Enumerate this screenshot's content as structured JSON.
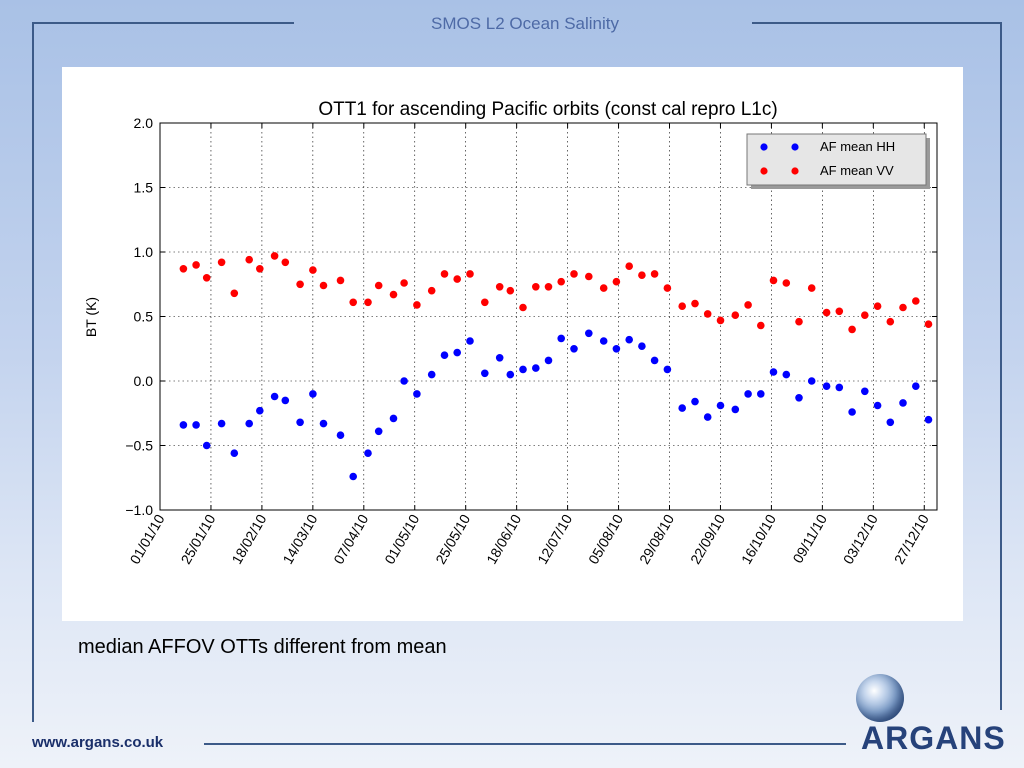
{
  "slide": {
    "title": "SMOS L2 Ocean Salinity",
    "caption": "median AFFOV OTTs different from mean",
    "footer_url": "www.argans.co.uk",
    "logo_text": "ARGANS"
  },
  "colors": {
    "frame": "#3c5a88",
    "title": "#4e6aa6",
    "hh": "#0000ff",
    "vv": "#ff0000"
  },
  "chart_data": {
    "type": "scatter",
    "title": "OTT1 for ascending Pacific orbits (const cal repro L1c)",
    "xlabel": "",
    "ylabel": "BT (K)",
    "x_tick_labels": [
      "01/01/10",
      "25/01/10",
      "18/02/10",
      "14/03/10",
      "07/04/10",
      "01/05/10",
      "25/05/10",
      "18/06/10",
      "12/07/10",
      "05/08/10",
      "29/08/10",
      "22/09/10",
      "16/10/10",
      "09/11/10",
      "03/12/10",
      "27/12/10"
    ],
    "x_ticks": [
      "2010-01-01",
      "2010-01-25",
      "2010-02-18",
      "2010-03-14",
      "2010-04-07",
      "2010-05-01",
      "2010-05-25",
      "2010-06-18",
      "2010-07-12",
      "2010-08-05",
      "2010-08-29",
      "2010-09-22",
      "2010-10-16",
      "2010-11-09",
      "2010-12-03",
      "2010-12-27"
    ],
    "xlim": [
      "2010-01-01",
      "2011-01-02"
    ],
    "ylim": [
      -1.0,
      2.0
    ],
    "y_ticks": [
      -1.0,
      -0.5,
      0.0,
      0.5,
      1.0,
      1.5,
      2.0
    ],
    "y_tick_labels": [
      "−1.0",
      "−0.5",
      "0.0",
      "0.5",
      "1.0",
      "1.5",
      "2.0"
    ],
    "grid": true,
    "legend_position": "top-right",
    "series": [
      {
        "name": "AF mean HH",
        "color": "#0000ff",
        "points": [
          [
            "2010-01-12",
            -0.34
          ],
          [
            "2010-01-18",
            -0.34
          ],
          [
            "2010-01-23",
            -0.5
          ],
          [
            "2010-01-30",
            -0.33
          ],
          [
            "2010-02-05",
            -0.56
          ],
          [
            "2010-02-12",
            -0.33
          ],
          [
            "2010-02-17",
            -0.23
          ],
          [
            "2010-02-24",
            -0.12
          ],
          [
            "2010-03-01",
            -0.15
          ],
          [
            "2010-03-08",
            -0.32
          ],
          [
            "2010-03-14",
            -0.1
          ],
          [
            "2010-03-19",
            -0.33
          ],
          [
            "2010-03-27",
            -0.42
          ],
          [
            "2010-04-02",
            -0.74
          ],
          [
            "2010-04-09",
            -0.56
          ],
          [
            "2010-04-14",
            -0.39
          ],
          [
            "2010-04-21",
            -0.29
          ],
          [
            "2010-04-26",
            0.0
          ],
          [
            "2010-05-02",
            -0.1
          ],
          [
            "2010-05-09",
            0.05
          ],
          [
            "2010-05-15",
            0.2
          ],
          [
            "2010-05-21",
            0.22
          ],
          [
            "2010-05-27",
            0.31
          ],
          [
            "2010-06-03",
            0.06
          ],
          [
            "2010-06-10",
            0.18
          ],
          [
            "2010-06-15",
            0.05
          ],
          [
            "2010-06-21",
            0.09
          ],
          [
            "2010-06-27",
            0.1
          ],
          [
            "2010-07-03",
            0.16
          ],
          [
            "2010-07-09",
            0.33
          ],
          [
            "2010-07-15",
            0.25
          ],
          [
            "2010-07-22",
            0.37
          ],
          [
            "2010-07-29",
            0.31
          ],
          [
            "2010-08-04",
            0.25
          ],
          [
            "2010-08-10",
            0.32
          ],
          [
            "2010-08-16",
            0.27
          ],
          [
            "2010-08-22",
            0.16
          ],
          [
            "2010-08-28",
            0.09
          ],
          [
            "2010-09-04",
            -0.21
          ],
          [
            "2010-09-10",
            -0.16
          ],
          [
            "2010-09-16",
            -0.28
          ],
          [
            "2010-09-22",
            -0.19
          ],
          [
            "2010-09-29",
            -0.22
          ],
          [
            "2010-10-05",
            -0.1
          ],
          [
            "2010-10-11",
            -0.1
          ],
          [
            "2010-10-17",
            0.07
          ],
          [
            "2010-10-23",
            0.05
          ],
          [
            "2010-10-29",
            -0.13
          ],
          [
            "2010-11-04",
            0.0
          ],
          [
            "2010-11-11",
            -0.04
          ],
          [
            "2010-11-17",
            -0.05
          ],
          [
            "2010-11-23",
            -0.24
          ],
          [
            "2010-11-29",
            -0.08
          ],
          [
            "2010-12-05",
            -0.19
          ],
          [
            "2010-12-11",
            -0.32
          ],
          [
            "2010-12-17",
            -0.17
          ],
          [
            "2010-12-23",
            -0.04
          ],
          [
            "2010-12-29",
            -0.3
          ]
        ]
      },
      {
        "name": "AF mean VV",
        "color": "#ff0000",
        "points": [
          [
            "2010-01-12",
            0.87
          ],
          [
            "2010-01-18",
            0.9
          ],
          [
            "2010-01-23",
            0.8
          ],
          [
            "2010-01-30",
            0.92
          ],
          [
            "2010-02-05",
            0.68
          ],
          [
            "2010-02-12",
            0.94
          ],
          [
            "2010-02-17",
            0.87
          ],
          [
            "2010-02-24",
            0.97
          ],
          [
            "2010-03-01",
            0.92
          ],
          [
            "2010-03-08",
            0.75
          ],
          [
            "2010-03-14",
            0.86
          ],
          [
            "2010-03-19",
            0.74
          ],
          [
            "2010-03-27",
            0.78
          ],
          [
            "2010-04-02",
            0.61
          ],
          [
            "2010-04-09",
            0.61
          ],
          [
            "2010-04-14",
            0.74
          ],
          [
            "2010-04-21",
            0.67
          ],
          [
            "2010-04-26",
            0.76
          ],
          [
            "2010-05-02",
            0.59
          ],
          [
            "2010-05-09",
            0.7
          ],
          [
            "2010-05-15",
            0.83
          ],
          [
            "2010-05-21",
            0.79
          ],
          [
            "2010-05-27",
            0.83
          ],
          [
            "2010-06-03",
            0.61
          ],
          [
            "2010-06-10",
            0.73
          ],
          [
            "2010-06-15",
            0.7
          ],
          [
            "2010-06-21",
            0.57
          ],
          [
            "2010-06-27",
            0.73
          ],
          [
            "2010-07-03",
            0.73
          ],
          [
            "2010-07-09",
            0.77
          ],
          [
            "2010-07-15",
            0.83
          ],
          [
            "2010-07-22",
            0.81
          ],
          [
            "2010-07-29",
            0.72
          ],
          [
            "2010-08-04",
            0.77
          ],
          [
            "2010-08-10",
            0.89
          ],
          [
            "2010-08-16",
            0.82
          ],
          [
            "2010-08-22",
            0.83
          ],
          [
            "2010-08-28",
            0.72
          ],
          [
            "2010-09-04",
            0.58
          ],
          [
            "2010-09-10",
            0.6
          ],
          [
            "2010-09-16",
            0.52
          ],
          [
            "2010-09-22",
            0.47
          ],
          [
            "2010-09-29",
            0.51
          ],
          [
            "2010-10-05",
            0.59
          ],
          [
            "2010-10-11",
            0.43
          ],
          [
            "2010-10-17",
            0.78
          ],
          [
            "2010-10-23",
            0.76
          ],
          [
            "2010-10-29",
            0.46
          ],
          [
            "2010-11-04",
            0.72
          ],
          [
            "2010-11-11",
            0.53
          ],
          [
            "2010-11-17",
            0.54
          ],
          [
            "2010-11-23",
            0.4
          ],
          [
            "2010-11-29",
            0.51
          ],
          [
            "2010-12-05",
            0.58
          ],
          [
            "2010-12-11",
            0.46
          ],
          [
            "2010-12-17",
            0.57
          ],
          [
            "2010-12-23",
            0.62
          ],
          [
            "2010-12-29",
            0.44
          ]
        ]
      }
    ]
  }
}
